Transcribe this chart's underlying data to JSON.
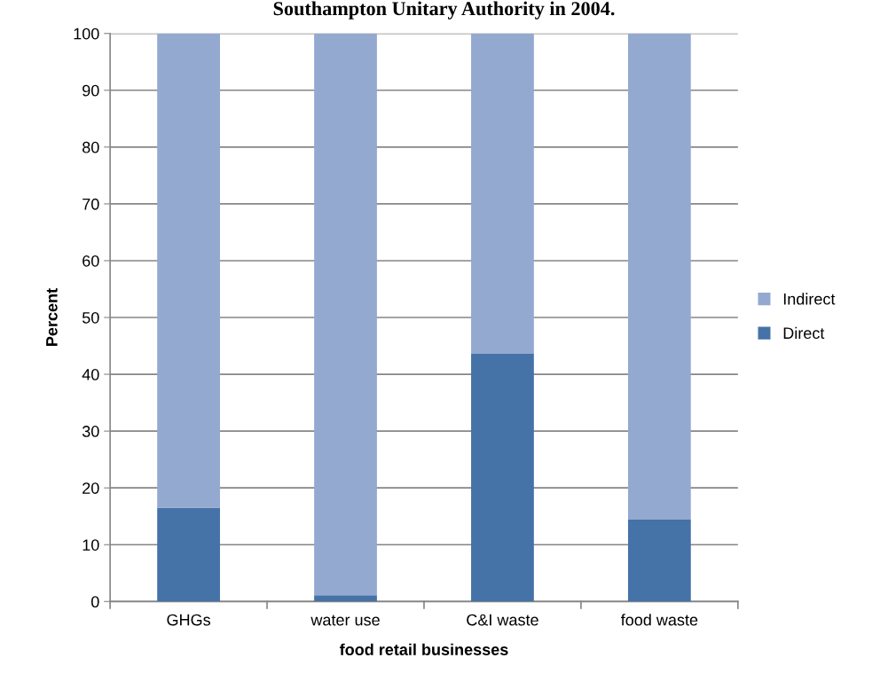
{
  "chart_data": {
    "type": "bar",
    "title": "Southampton Unitary Authority in 2004.",
    "xlabel": "food retail businesses",
    "ylabel": "Percent",
    "categories": [
      "GHGs",
      "water use",
      "C&I waste",
      "food waste"
    ],
    "stacked": true,
    "series": [
      {
        "name": "Direct",
        "color": "#4572a7",
        "values": [
          16.5,
          1.1,
          43.6,
          14.4
        ]
      },
      {
        "name": "Indirect",
        "color": "#94a9d0",
        "values": [
          83.5,
          98.9,
          56.4,
          85.6
        ]
      }
    ],
    "ylim": [
      0,
      100
    ],
    "yticks": [
      0,
      10,
      20,
      30,
      40,
      50,
      60,
      70,
      80,
      90,
      100
    ],
    "grid": "y",
    "legend": "right"
  }
}
